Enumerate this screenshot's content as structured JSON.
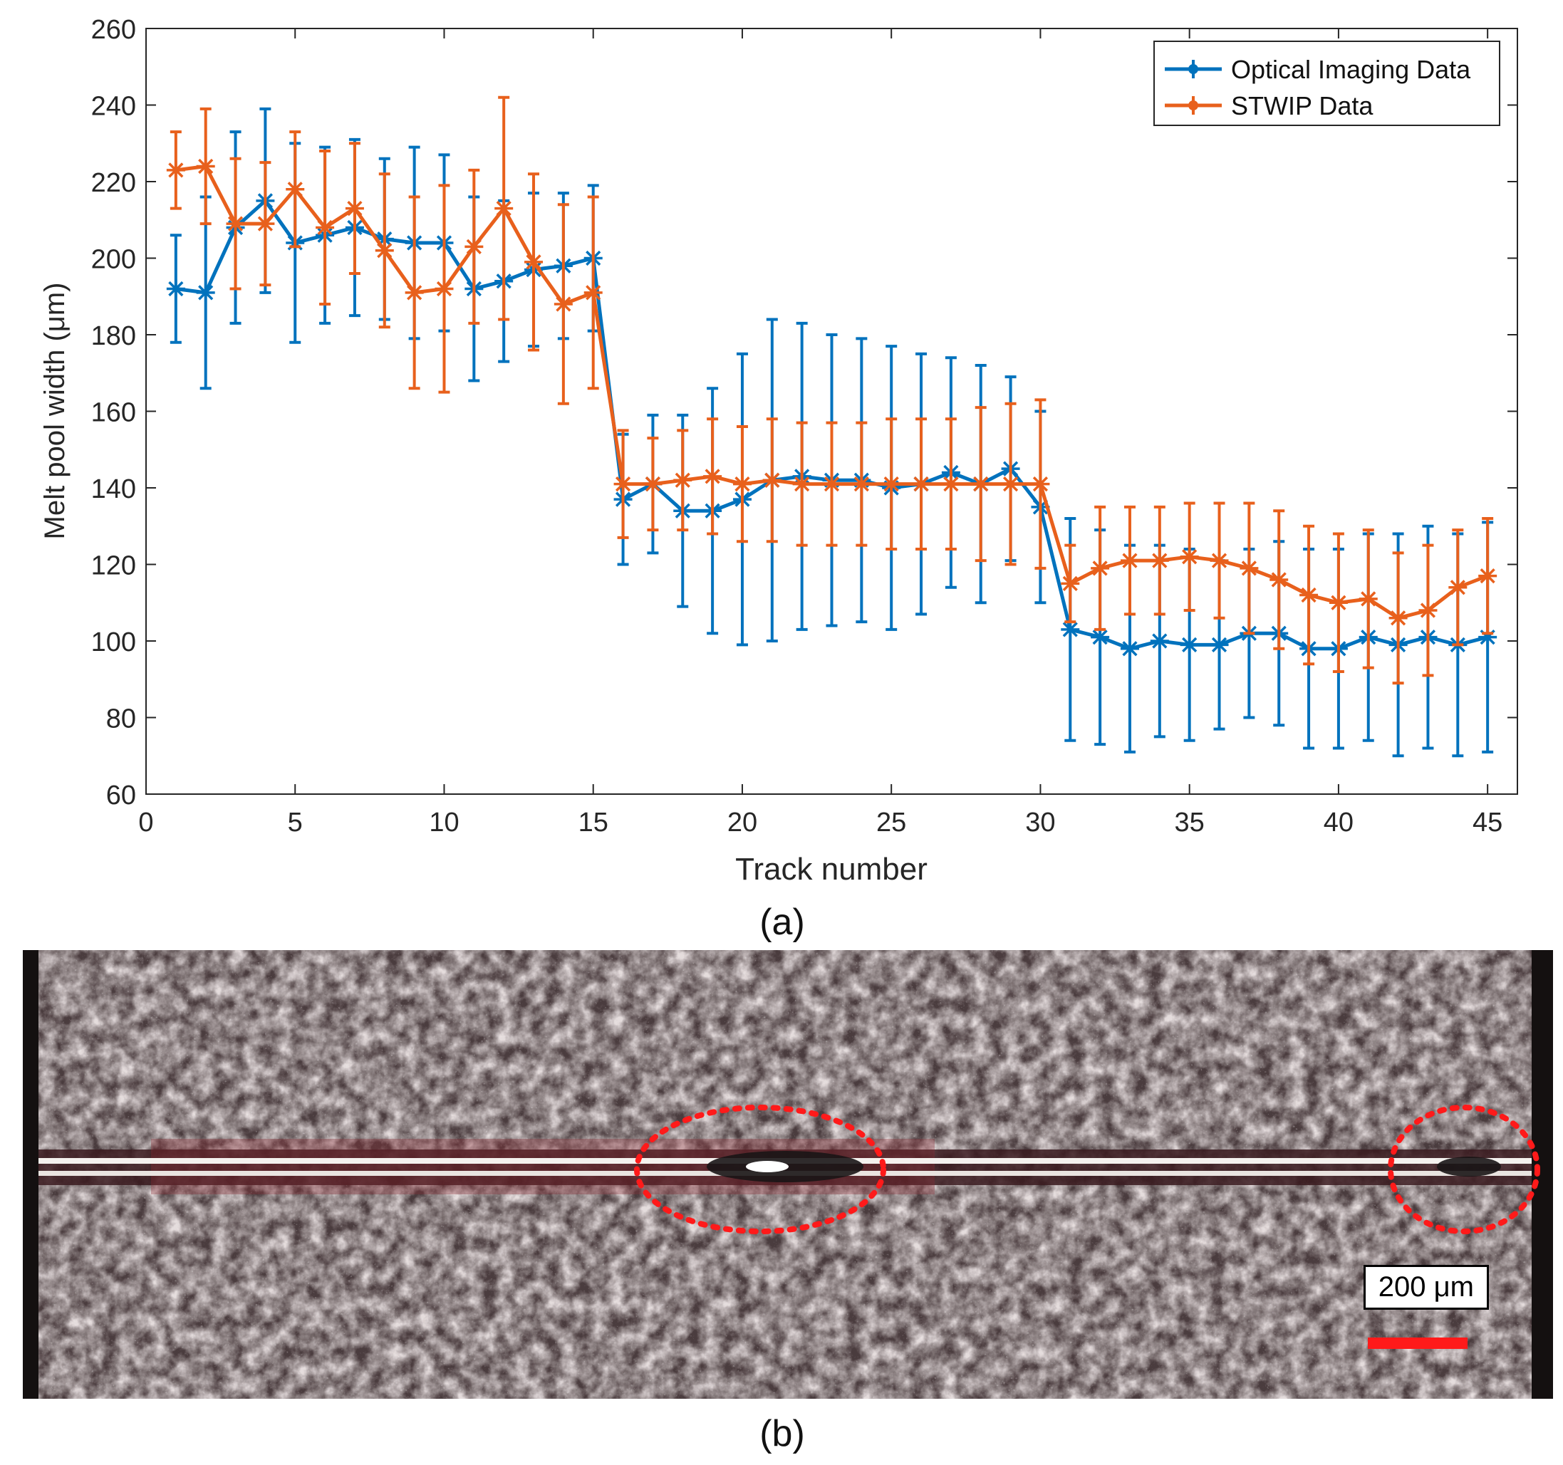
{
  "chart_data": {
    "type": "line",
    "xlabel": "Track number",
    "ylabel": "Melt pool width (μm)",
    "xlim": [
      0,
      46
    ],
    "ylim": [
      60,
      260
    ],
    "xticks": [
      0,
      5,
      10,
      15,
      20,
      25,
      30,
      35,
      40,
      45
    ],
    "yticks": [
      60,
      80,
      100,
      120,
      140,
      160,
      180,
      200,
      220,
      240,
      260
    ],
    "legend_position": "top-right",
    "x": [
      1,
      2,
      3,
      4,
      5,
      6,
      7,
      8,
      9,
      10,
      11,
      12,
      13,
      14,
      15,
      16,
      17,
      18,
      19,
      20,
      21,
      22,
      23,
      24,
      25,
      26,
      27,
      28,
      29,
      30,
      31,
      32,
      33,
      34,
      35,
      36,
      37,
      38,
      39,
      40,
      41,
      42,
      43,
      44,
      45
    ],
    "series": [
      {
        "name": "Optical Imaging Data",
        "color": "#0072bd",
        "values": [
          192,
          191,
          208,
          215,
          204,
          206,
          208,
          205,
          204,
          204,
          192,
          194,
          197,
          198,
          200,
          137,
          141,
          134,
          134,
          137,
          142,
          143,
          142,
          142,
          140,
          141,
          144,
          141,
          145,
          135,
          103,
          101,
          98,
          100,
          99,
          99,
          102,
          102,
          98,
          98,
          101,
          99,
          101,
          99,
          101
        ],
        "errors": [
          14,
          25,
          25,
          24,
          26,
          23,
          23,
          21,
          25,
          23,
          24,
          21,
          20,
          19,
          19,
          17,
          18,
          25,
          32,
          38,
          42,
          40,
          38,
          37,
          37,
          34,
          30,
          31,
          24,
          25,
          29,
          28,
          27,
          25,
          25,
          22,
          22,
          24,
          26,
          26,
          27,
          29,
          29,
          29,
          30
        ]
      },
      {
        "name": "STWIP Data",
        "color": "#e8601c",
        "values": [
          223,
          224,
          209,
          209,
          218,
          208,
          213,
          202,
          191,
          192,
          203,
          213,
          199,
          188,
          191,
          141,
          141,
          142,
          143,
          141,
          142,
          141,
          141,
          141,
          141,
          141,
          141,
          141,
          141,
          141,
          115,
          119,
          121,
          121,
          122,
          121,
          119,
          116,
          112,
          110,
          111,
          106,
          108,
          114,
          117
        ],
        "errors": [
          10,
          15,
          17,
          16,
          15,
          20,
          17,
          20,
          25,
          27,
          20,
          29,
          23,
          26,
          25,
          14,
          12,
          13,
          15,
          15,
          16,
          16,
          16,
          16,
          17,
          17,
          17,
          20,
          21,
          22,
          10,
          16,
          14,
          14,
          14,
          15,
          17,
          18,
          18,
          18,
          18,
          17,
          17,
          15,
          15
        ]
      }
    ]
  },
  "panel_labels": {
    "a": "(a)",
    "b": "(b)"
  },
  "micrograph": {
    "scale_label": "200 μm",
    "scale_bar_color": "#ff1a1a",
    "highlight_color": "#ff1a1a"
  }
}
